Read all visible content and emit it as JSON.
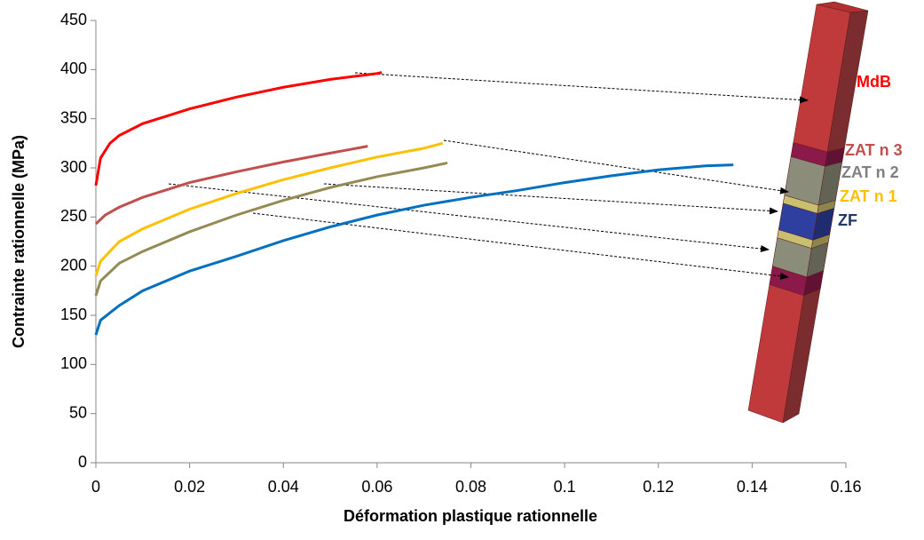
{
  "chart_data": {
    "type": "line",
    "x_label": "Déformation plastique rationnelle",
    "y_label": "Contrainte rationnelle (MPa)",
    "xlim": [
      0,
      0.16
    ],
    "xticks": [
      0,
      0.02,
      0.04,
      0.06,
      0.08,
      0.1,
      0.12,
      0.14,
      0.16
    ],
    "ylim": [
      0,
      450
    ],
    "yticks": [
      0,
      50,
      100,
      150,
      200,
      250,
      300,
      350,
      400,
      450
    ],
    "grid": false,
    "series": [
      {
        "name": "MdB",
        "color": "#ff0000",
        "label_color": "#ff0000",
        "x": [
          0,
          0.001,
          0.003,
          0.005,
          0.01,
          0.02,
          0.03,
          0.04,
          0.05,
          0.06,
          0.061
        ],
        "values": [
          282,
          310,
          325,
          333,
          345,
          360,
          372,
          382,
          390,
          396,
          397
        ]
      },
      {
        "name": "ZAT n 3",
        "color": "#c0504d",
        "label_color": "#c0504d",
        "x": [
          0,
          0.002,
          0.005,
          0.01,
          0.02,
          0.03,
          0.04,
          0.05,
          0.058
        ],
        "values": [
          243,
          252,
          260,
          270,
          285,
          296,
          306,
          315,
          322
        ]
      },
      {
        "name": "ZAT n 2",
        "color": "#948a54",
        "label_color": "#808080",
        "x": [
          0,
          0.001,
          0.005,
          0.01,
          0.02,
          0.03,
          0.04,
          0.05,
          0.06,
          0.07,
          0.075
        ],
        "values": [
          170,
          185,
          203,
          215,
          235,
          252,
          267,
          280,
          291,
          300,
          305
        ]
      },
      {
        "name": "ZAT n 1",
        "color": "#ffc000",
        "label_color": "#ffc000",
        "x": [
          0,
          0.001,
          0.005,
          0.01,
          0.02,
          0.03,
          0.04,
          0.05,
          0.06,
          0.07,
          0.074
        ],
        "values": [
          190,
          205,
          225,
          238,
          258,
          274,
          288,
          300,
          311,
          320,
          325
        ]
      },
      {
        "name": "ZF",
        "color": "#0070c0",
        "label_color": "#1f3864",
        "x": [
          0,
          0.001,
          0.005,
          0.01,
          0.02,
          0.03,
          0.04,
          0.05,
          0.06,
          0.07,
          0.08,
          0.09,
          0.1,
          0.11,
          0.12,
          0.13,
          0.136
        ],
        "values": [
          130,
          145,
          160,
          175,
          195,
          210,
          226,
          240,
          252,
          262,
          270,
          277,
          285,
          292,
          298,
          302,
          303
        ]
      }
    ]
  }
}
